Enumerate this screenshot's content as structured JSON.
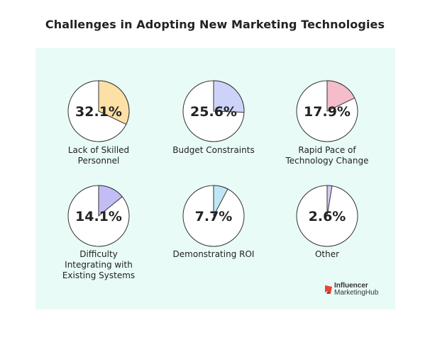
{
  "chart_data": {
    "type": "pie",
    "title": "Challenges in Adopting New Marketing Technologies",
    "items": [
      {
        "label_lines": [
          "Lack of Skilled",
          "Personnel"
        ],
        "value": 32.1,
        "display": "32.1%",
        "color": "#fde0a6"
      },
      {
        "label_lines": [
          "Budget Constraints"
        ],
        "value": 25.6,
        "display": "25.6%",
        "color": "#cdd3f8"
      },
      {
        "label_lines": [
          "Rapid Pace of",
          "Technology Change"
        ],
        "value": 17.9,
        "display": "17.9%",
        "color": "#f5bccb"
      },
      {
        "label_lines": [
          "Difficulty",
          "Integrating with",
          "Existing Systems"
        ],
        "value": 14.1,
        "display": "14.1%",
        "color": "#c3bdf5"
      },
      {
        "label_lines": [
          "Demonstrating ROI"
        ],
        "value": 7.7,
        "display": "7.7%",
        "color": "#bfe6f4"
      },
      {
        "label_lines": [
          "Other"
        ],
        "value": 2.6,
        "display": "2.6%",
        "color": "#d8c8f2"
      }
    ]
  },
  "brand": {
    "line1": "Influencer",
    "line2": "MarketingHub",
    "icon": "influencer-marketing-hub-logo-icon",
    "icon_color": "#e8433d"
  }
}
